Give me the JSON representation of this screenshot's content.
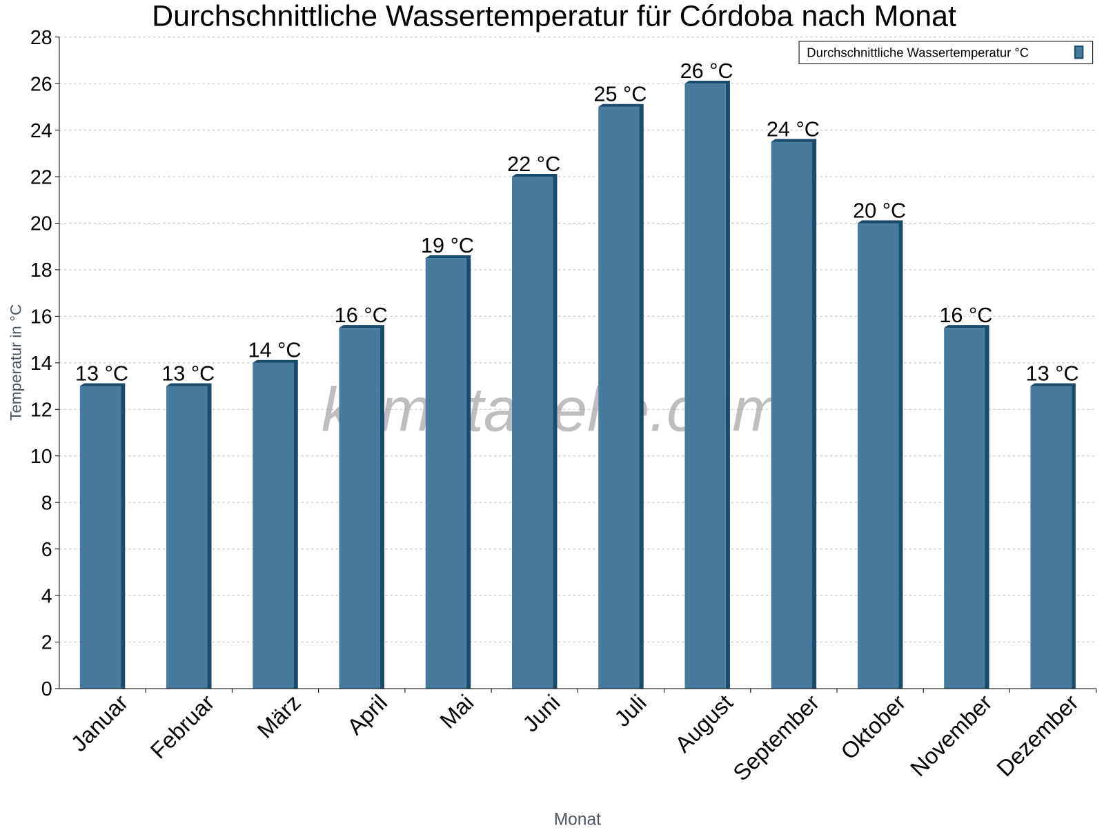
{
  "chart_data": {
    "type": "bar",
    "title": "Durchschnittliche Wassertemperatur für Córdoba nach Monat",
    "xlabel": "Monat",
    "ylabel": "Temperatur in °C",
    "ylim": [
      0,
      28
    ],
    "yticks": [
      0,
      2,
      4,
      6,
      8,
      10,
      12,
      14,
      16,
      18,
      20,
      22,
      24,
      26,
      28
    ],
    "grid": true,
    "legend_position": "top-right",
    "categories": [
      "Januar",
      "Februar",
      "März",
      "April",
      "Mai",
      "Juni",
      "Juli",
      "August",
      "September",
      "Oktober",
      "November",
      "Dezember"
    ],
    "series": [
      {
        "name": "Durchschnittliche Wassertemperatur °C",
        "color": "#467b9d",
        "edge_color": "#1a4a6c",
        "values": [
          13,
          13,
          14,
          15.5,
          18.5,
          22,
          25,
          26,
          23.5,
          20,
          15.5,
          13
        ],
        "data_labels": [
          "13 °C",
          "13 °C",
          "14 °C",
          "16 °C",
          "19 °C",
          "22 °C",
          "25 °C",
          "26 °C",
          "24 °C",
          "20 °C",
          "16 °C",
          "13 °C"
        ]
      }
    ],
    "watermark": "klimatabelle.com"
  }
}
